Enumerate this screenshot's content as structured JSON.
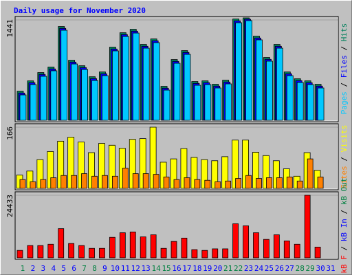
{
  "title": "Daily usage for November 2020",
  "legend_separator": " / ",
  "categories": [
    "1",
    "2",
    "3",
    "4",
    "5",
    "6",
    "7",
    "8",
    "9",
    "10",
    "11",
    "12",
    "13",
    "14",
    "15",
    "16",
    "17",
    "18",
    "19",
    "20",
    "21",
    "22",
    "23",
    "24",
    "25",
    "26",
    "27",
    "28",
    "29",
    "30",
    "31"
  ],
  "category_colors": [
    "#008040",
    "#0000ff",
    "#0000ff",
    "#0000ff",
    "#0000ff",
    "#0000ff",
    "#008040",
    "#008040",
    "#0000ff",
    "#0000ff",
    "#0000ff",
    "#0000ff",
    "#0000ff",
    "#008040",
    "#008040",
    "#0000ff",
    "#0000ff",
    "#0000ff",
    "#0000ff",
    "#0000ff",
    "#008040",
    "#008040",
    "#0000ff",
    "#0000ff",
    "#0000ff",
    "#0000ff",
    "#0000ff",
    "#008040",
    "#008040",
    "#0000ff",
    "#0000ff"
  ],
  "chart_data": [
    {
      "type": "bar",
      "ylim": [
        0,
        1441
      ],
      "yticks": [
        1441
      ],
      "series": [
        {
          "name": "Hits",
          "color": "#00805c",
          "values": [
            389,
            537,
            656,
            735,
            1317,
            833,
            754,
            596,
            665,
            1021,
            1228,
            1277,
            1060,
            1139,
            458,
            843,
            971,
            527,
            537,
            488,
            547,
            1425,
            1441,
            1179,
            873,
            1060,
            665,
            567,
            537,
            488,
            null
          ]
        },
        {
          "name": "Files",
          "color": "#0000ff",
          "values": [
            377,
            525,
            644,
            723,
            1305,
            821,
            742,
            584,
            653,
            1009,
            1216,
            1265,
            1048,
            1127,
            446,
            831,
            959,
            515,
            525,
            476,
            535,
            1413,
            1436,
            1167,
            861,
            1048,
            653,
            555,
            525,
            476,
            null
          ]
        },
        {
          "name": "Pages",
          "color": "#00c8ff",
          "values": [
            365,
            513,
            632,
            711,
            1293,
            809,
            730,
            572,
            641,
            997,
            1204,
            1253,
            1036,
            1115,
            434,
            819,
            947,
            503,
            513,
            464,
            523,
            1401,
            1431,
            1155,
            849,
            1036,
            641,
            543,
            513,
            464,
            null
          ]
        }
      ]
    },
    {
      "type": "bar",
      "ylim": [
        0,
        166
      ],
      "yticks": [
        166
      ],
      "series": [
        {
          "name": "Visits",
          "color": "#ffff00",
          "values": [
            36,
            47,
            78,
            100,
            128,
            139,
            126,
            97,
            122,
            117,
            109,
            133,
            135,
            166,
            71,
            80,
            108,
            84,
            78,
            75,
            86,
            131,
            131,
            98,
            89,
            75,
            53,
            33,
            97,
            49,
            null
          ]
        },
        {
          "name": "Sites",
          "color": "#ff8000",
          "values": [
            24,
            18,
            24,
            29,
            35,
            35,
            40,
            33,
            35,
            33,
            55,
            40,
            40,
            38,
            31,
            24,
            29,
            24,
            22,
            18,
            20,
            27,
            35,
            27,
            29,
            29,
            31,
            20,
            80,
            31,
            null
          ]
        }
      ]
    },
    {
      "type": "bar",
      "ylim": [
        0,
        24433
      ],
      "yticks": [
        24433
      ],
      "series": [
        {
          "name": "kB F",
          "color": "#ff0000",
          "values": [
            2900,
            4800,
            4800,
            5300,
            11400,
            5600,
            4800,
            3700,
            3700,
            8000,
            9800,
            10100,
            8200,
            9000,
            3700,
            6400,
            7700,
            3200,
            2900,
            3500,
            3500,
            13300,
            12500,
            9800,
            7200,
            9000,
            6600,
            5300,
            24433,
            4200,
            null
          ]
        }
      ],
      "other_legend": [
        {
          "name": "kB In",
          "color": "#0000ff"
        },
        {
          "name": "kB Out",
          "color": "#008040"
        }
      ]
    }
  ]
}
